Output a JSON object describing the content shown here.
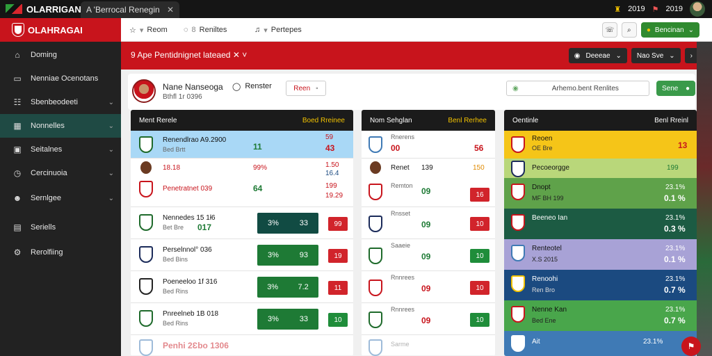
{
  "topbar": {
    "brand": "OLARRIGAN",
    "tab_label": "A 'Berrocal Renegin",
    "right_a": "2019",
    "right_b": "2019"
  },
  "sidebar": {
    "logo": "OLAHRAGAI",
    "items": [
      {
        "label": "Doming",
        "icon": "home-icon"
      },
      {
        "label": "Nenniae Ocenotans",
        "icon": "card-icon"
      },
      {
        "label": "Sbenbeodeeti",
        "icon": "list-icon",
        "chevron": true
      },
      {
        "label": "Nonnelles",
        "icon": "chart-icon",
        "chevron": true
      },
      {
        "label": "Seitalnes",
        "icon": "briefcase-icon",
        "chevron": true
      },
      {
        "label": "Cercinuoia",
        "icon": "clock-icon",
        "chevron": true
      },
      {
        "label": "Sernlgee",
        "icon": "users-icon",
        "chevron": true
      },
      {
        "label": "Seriells",
        "icon": "grid-icon"
      },
      {
        "label": "Rerolfiing",
        "icon": "gear-icon"
      }
    ]
  },
  "navbar": {
    "home": "Reom",
    "messages": "Reniltes",
    "profile": "Pertepes",
    "cta": "Bencinan"
  },
  "redbar": {
    "title": "9  Ape Pentidnignet lateaed",
    "btn1": "Deeeae",
    "btn2": "Nao Sve"
  },
  "profile": {
    "name": "Nane Nanseoga",
    "sub": "Bthfl 1r 0396",
    "status": "Renster",
    "btn": "Reen",
    "search": "Arhemo.bent Renlites",
    "go": "Sene"
  },
  "panel1": {
    "title": "Ment Rerele",
    "cols": "Boed  Rreinee",
    "rows": [
      {
        "name": "Renendlrao A9.2900",
        "sub": "Bed Brtt",
        "score": "11",
        "a": "59",
        "b": "43",
        "hl": true
      },
      {
        "name": "18.18",
        "pct": "99%",
        "a": "1.50",
        "b": "16.4"
      },
      {
        "name": "Penetratnet 039",
        "score": "64",
        "a": "199",
        "b": "19.29"
      },
      {
        "name": "Nennedes 15 1ł6",
        "sub": "Bet Bre",
        "score": "017",
        "g1": "3%",
        "g2": "33",
        "box": "99"
      },
      {
        "name": "Perselnnol° 036",
        "sub": "Bed Bins",
        "g1": "3%",
        "g2": "93",
        "box": "19"
      },
      {
        "name": "Poeneeloo 1f 316",
        "sub": "Bed Rins",
        "g1": "3%",
        "g2": "7.2",
        "box": "11"
      },
      {
        "name": "Pnreelneb 1B 018",
        "sub": "Bed Rins",
        "g1": "3%",
        "g2": "33",
        "box": "10"
      },
      {
        "name": "Penhi 2Ɛbo 1306"
      }
    ]
  },
  "panel2": {
    "title": "Nom Sehglan",
    "cols": "Benl  Rerhee",
    "rows": [
      {
        "top": "Rnerens",
        "a": "00",
        "b": "56"
      },
      {
        "top": "Renet",
        "mid": "139",
        "b": "150"
      },
      {
        "top": "Remton",
        "a": "09",
        "box": "16"
      },
      {
        "top": "Rnsset",
        "a": "09",
        "box": "10"
      },
      {
        "top": "Saaeie",
        "a": "09",
        "box": "10"
      },
      {
        "top": "Rnnrees",
        "a": "09",
        "box": "10"
      },
      {
        "top": "Rnnrees",
        "a": "09",
        "box": "10"
      },
      {
        "top": "Sarme"
      }
    ]
  },
  "panel3": {
    "title": "Oentinle",
    "cols": "Benl  Rreinl",
    "rows": [
      {
        "name": "Reoen",
        "sub": "OE Bre",
        "v1": "13",
        "color": "#f5c518"
      },
      {
        "name": "Pecoeorgge",
        "v1": "199",
        "color": "#b9d77a"
      },
      {
        "name": "Dnopt",
        "sub": "MF BH 199",
        "v1": "23.1%",
        "v2": "0.1 %",
        "color": "#5fa24a"
      },
      {
        "name": "Beeneo Ian",
        "v1": "23.1%",
        "v2": "0.3 %",
        "color": "#1c5b43"
      },
      {
        "name": "Renteotel",
        "sub": "X.S 2015",
        "v1": "23.1%",
        "v2": "0.1 %",
        "color": "#a8a2d6"
      },
      {
        "name": "Renoohi",
        "sub": "Ren Bro",
        "v1": "23.1%",
        "v2": "0.7 %",
        "color": "#1b4a80"
      },
      {
        "name": "Nenne Kan",
        "sub": "Bed Ene",
        "v1": "23.1%",
        "v2": "0.7 %",
        "color": "#49a64b"
      },
      {
        "name": "Ait",
        "v1": "23.1%",
        "color": "#3f7ab5"
      }
    ]
  }
}
